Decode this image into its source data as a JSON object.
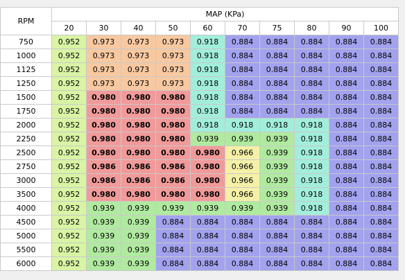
{
  "table": {
    "row_axis_label": "RPM",
    "col_axis_label": "MAP (KPa)",
    "columns": [
      "20",
      "30",
      "40",
      "50",
      "60",
      "70",
      "75",
      "80",
      "90",
      "100"
    ],
    "rows": [
      {
        "rpm": "750",
        "values": [
          "0.952",
          "0.973",
          "0.973",
          "0.973",
          "0.918",
          "0.884",
          "0.884",
          "0.884",
          "0.884",
          "0.884"
        ]
      },
      {
        "rpm": "1000",
        "values": [
          "0.952",
          "0.973",
          "0.973",
          "0.973",
          "0.918",
          "0.884",
          "0.884",
          "0.884",
          "0.884",
          "0.884"
        ]
      },
      {
        "rpm": "1125",
        "values": [
          "0.952",
          "0.973",
          "0.973",
          "0.973",
          "0.918",
          "0.884",
          "0.884",
          "0.884",
          "0.884",
          "0.884"
        ]
      },
      {
        "rpm": "1250",
        "values": [
          "0.952",
          "0.973",
          "0.973",
          "0.973",
          "0.918",
          "0.884",
          "0.884",
          "0.884",
          "0.884",
          "0.884"
        ]
      },
      {
        "rpm": "1500",
        "values": [
          "0.952",
          "0.980",
          "0.980",
          "0.980",
          "0.918",
          "0.884",
          "0.884",
          "0.884",
          "0.884",
          "0.884"
        ]
      },
      {
        "rpm": "1750",
        "values": [
          "0.952",
          "0.980",
          "0.980",
          "0.980",
          "0.918",
          "0.884",
          "0.884",
          "0.884",
          "0.884",
          "0.884"
        ]
      },
      {
        "rpm": "2000",
        "values": [
          "0.952",
          "0.980",
          "0.980",
          "0.980",
          "0.918",
          "0.918",
          "0.918",
          "0.918",
          "0.884",
          "0.884"
        ]
      },
      {
        "rpm": "2250",
        "values": [
          "0.952",
          "0.980",
          "0.980",
          "0.980",
          "0.939",
          "0.939",
          "0.939",
          "0.918",
          "0.884",
          "0.884"
        ]
      },
      {
        "rpm": "2500",
        "values": [
          "0.952",
          "0.980",
          "0.980",
          "0.980",
          "0.980",
          "0.966",
          "0.939",
          "0.918",
          "0.884",
          "0.884"
        ]
      },
      {
        "rpm": "2750",
        "values": [
          "0.952",
          "0.986",
          "0.986",
          "0.986",
          "0.980",
          "0.966",
          "0.939",
          "0.918",
          "0.884",
          "0.884"
        ]
      },
      {
        "rpm": "3000",
        "values": [
          "0.952",
          "0.986",
          "0.986",
          "0.986",
          "0.980",
          "0.966",
          "0.939",
          "0.918",
          "0.884",
          "0.884"
        ]
      },
      {
        "rpm": "3500",
        "values": [
          "0.952",
          "0.980",
          "0.980",
          "0.980",
          "0.980",
          "0.966",
          "0.939",
          "0.918",
          "0.884",
          "0.884"
        ]
      },
      {
        "rpm": "4000",
        "values": [
          "0.952",
          "0.939",
          "0.939",
          "0.939",
          "0.939",
          "0.939",
          "0.939",
          "0.918",
          "0.884",
          "0.884"
        ]
      },
      {
        "rpm": "4500",
        "values": [
          "0.952",
          "0.939",
          "0.939",
          "0.884",
          "0.884",
          "0.884",
          "0.884",
          "0.884",
          "0.884",
          "0.884"
        ]
      },
      {
        "rpm": "5000",
        "values": [
          "0.952",
          "0.939",
          "0.939",
          "0.884",
          "0.884",
          "0.884",
          "0.884",
          "0.884",
          "0.884",
          "0.884"
        ]
      },
      {
        "rpm": "5500",
        "values": [
          "0.952",
          "0.939",
          "0.939",
          "0.884",
          "0.884",
          "0.884",
          "0.884",
          "0.884",
          "0.884",
          "0.884"
        ]
      },
      {
        "rpm": "6000",
        "values": [
          "0.952",
          "0.939",
          "0.939",
          "0.884",
          "0.884",
          "0.884",
          "0.884",
          "0.884",
          "0.884",
          "0.884"
        ]
      }
    ]
  },
  "value_colors": {
    "0.884": "#a2a2ee",
    "0.918": "#a2eedc",
    "0.939": "#b0eaa0",
    "0.952": "#d8f4a4",
    "0.966": "#f4f0a8",
    "0.973": "#f8c8a0",
    "0.980": "#f19a9a",
    "0.986": "#f19a9a"
  },
  "bold_values": [
    "0.980",
    "0.986"
  ],
  "colors": {
    "header_bg": "#ffffff",
    "grid_line": "#c9c9c9",
    "window_bg": "#f0f0f0"
  }
}
